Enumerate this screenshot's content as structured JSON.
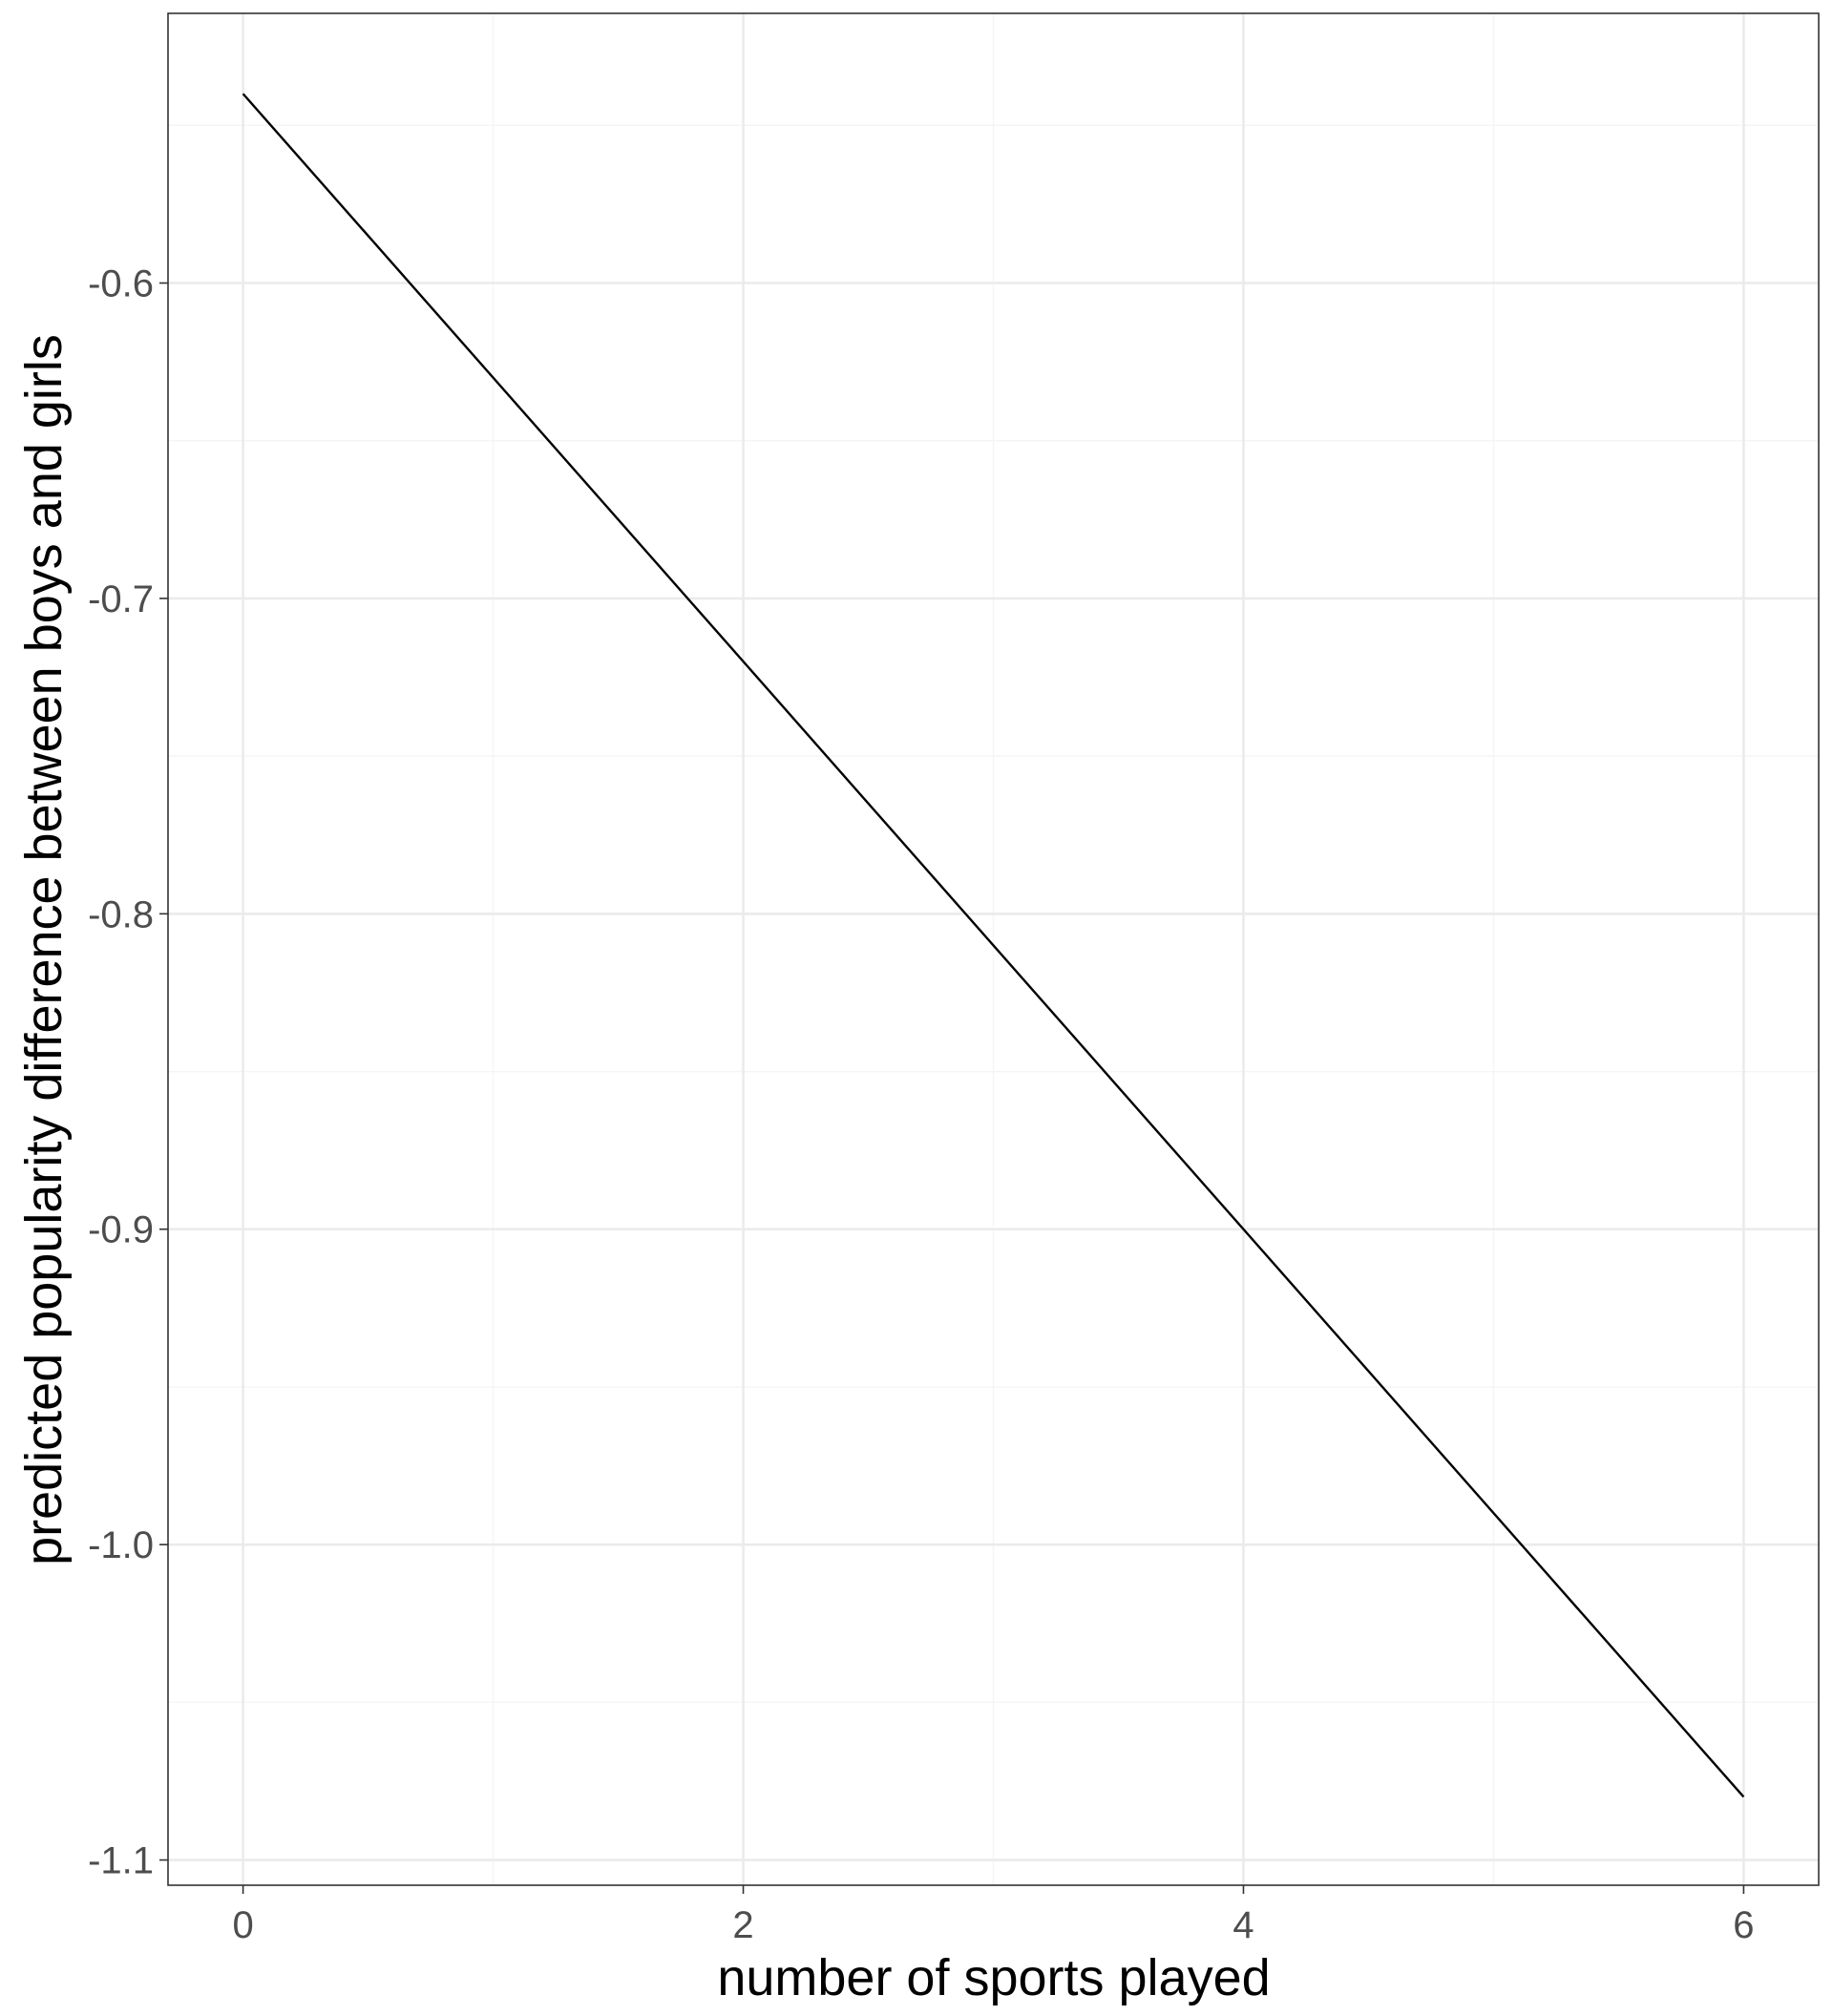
{
  "chart_data": {
    "type": "line",
    "title": "",
    "xlabel": "number of sports played",
    "ylabel": "predicted popularity difference between boys and girls",
    "xlim": [
      -0.3,
      6.3
    ],
    "ylim": [
      -1.108,
      -0.5145
    ],
    "x_ticks": [
      0,
      2,
      4,
      6
    ],
    "x_tick_labels": [
      "0",
      "2",
      "4",
      "6"
    ],
    "y_ticks": [
      -1.1,
      -1.0,
      -0.9,
      -0.8,
      -0.7,
      -0.6
    ],
    "y_tick_labels": [
      "-1.1",
      "-1.0",
      "-0.9",
      "-0.8",
      "-0.7",
      "-0.6"
    ],
    "x_minor_ticks": [
      1,
      3,
      5
    ],
    "y_minor_ticks": [
      -1.05,
      -0.95,
      -0.85,
      -0.75,
      -0.65,
      -0.55
    ],
    "grid": true,
    "theme": "bw",
    "colors": {
      "line": "#000000",
      "grid_major": "#ebebeb",
      "grid_minor": "#f5f5f5",
      "panel_border": "#333333",
      "tick_label": "#4d4d4d"
    },
    "series": [
      {
        "x": [
          0,
          6
        ],
        "y": [
          -0.54,
          -1.08
        ]
      }
    ]
  }
}
